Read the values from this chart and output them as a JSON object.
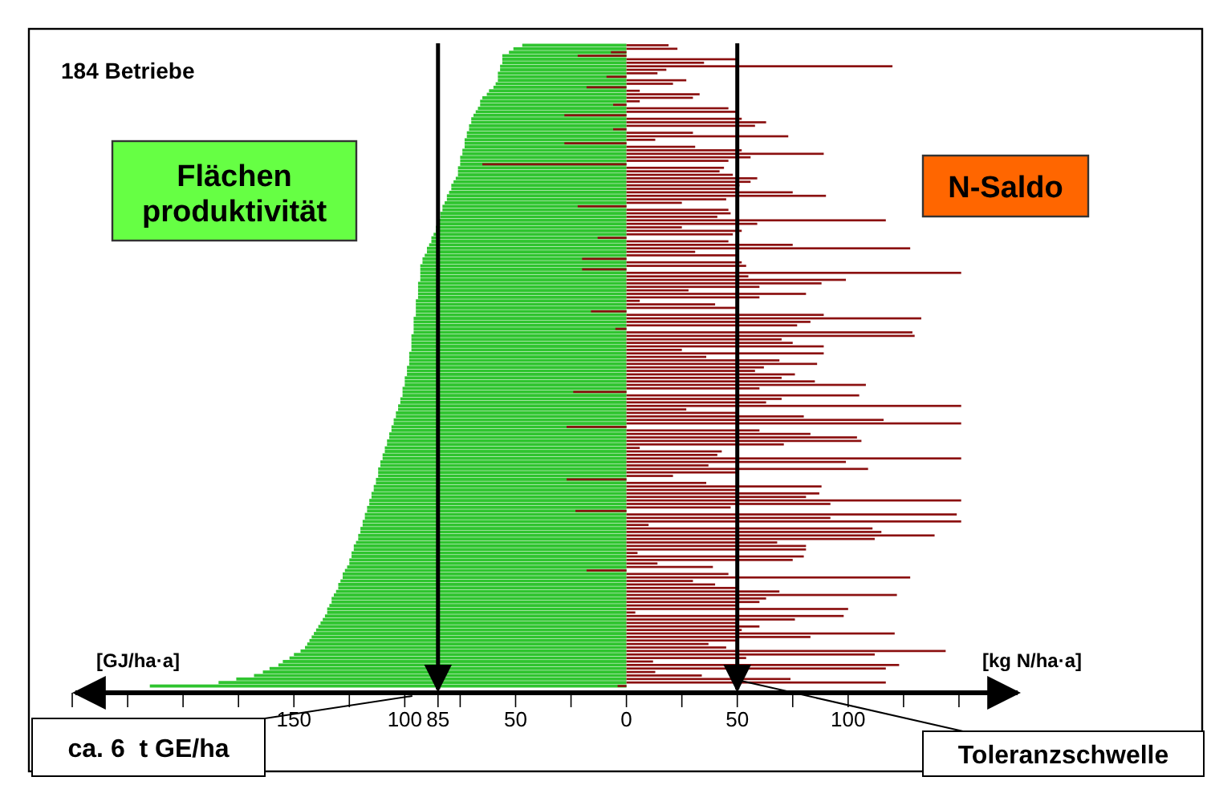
{
  "chart_data": {
    "type": "bar",
    "orientation": "horizontal",
    "title": "184 Betriebe",
    "categories": [
      null,
      null,
      null,
      null,
      null,
      null,
      null,
      null,
      null,
      null,
      null,
      null,
      null,
      null,
      null,
      null,
      null,
      null,
      null,
      null,
      null,
      null,
      null,
      null,
      null,
      null,
      null,
      null,
      null,
      null,
      null,
      null,
      null,
      null,
      null,
      null,
      null,
      null,
      null,
      null,
      null,
      null,
      null,
      null,
      null,
      null,
      null,
      null,
      null,
      null,
      null,
      null,
      null,
      null,
      null,
      null,
      null,
      null,
      null,
      null,
      null,
      null,
      null,
      null,
      null,
      null,
      null,
      null,
      null,
      null,
      null,
      null,
      null,
      null,
      null,
      null,
      null,
      null,
      null,
      null,
      null,
      null,
      null,
      null,
      null,
      null,
      null,
      null,
      null,
      null,
      null,
      null,
      null,
      null,
      null,
      null,
      null,
      null,
      null,
      null,
      null,
      null,
      null,
      null,
      null,
      null,
      null,
      null,
      null,
      null,
      null,
      null,
      null,
      null,
      null,
      null,
      null,
      null,
      null,
      null,
      null,
      null,
      null,
      null,
      null,
      null,
      null,
      null,
      null,
      null,
      null,
      null,
      null,
      null,
      null,
      null,
      null,
      null,
      null,
      null,
      null,
      null,
      null,
      null,
      null,
      null,
      null,
      null,
      null,
      null,
      null,
      null,
      null,
      null,
      null,
      null,
      null,
      null,
      null,
      null,
      null,
      null,
      null,
      null,
      null,
      null,
      null,
      null,
      null,
      null,
      null,
      null,
      null,
      null,
      null,
      null,
      null,
      null,
      null,
      null,
      null,
      null,
      null,
      null
    ],
    "series": [
      {
        "name": "Flächen produktivität",
        "color": "#2fc42f",
        "values": [
          -47,
          -51,
          -53,
          -56,
          -56,
          -56,
          -57,
          -57,
          -58,
          -58,
          -58,
          -59,
          -60,
          -62,
          -63,
          -65,
          -66,
          -66,
          -67,
          -68,
          -69,
          -70,
          -70,
          -71,
          -71,
          -72,
          -72,
          -73,
          -73,
          -73,
          -74,
          -74,
          -75,
          -75,
          -75,
          -76,
          -76,
          -76,
          -77,
          -78,
          -79,
          -79,
          -80,
          -81,
          -81,
          -82,
          -83,
          -83,
          -84,
          -84,
          -85,
          -85,
          -86,
          -86,
          -87,
          -88,
          -88,
          -89,
          -90,
          -90,
          -91,
          -92,
          -92,
          -93,
          -93,
          -93,
          -93,
          -93,
          -94,
          -94,
          -94,
          -94,
          -94,
          -95,
          -95,
          -95,
          -95,
          -95,
          -96,
          -96,
          -96,
          -96,
          -96,
          -97,
          -97,
          -97,
          -97,
          -97,
          -98,
          -98,
          -98,
          -98,
          -99,
          -99,
          -99,
          -100,
          -100,
          -100,
          -101,
          -101,
          -101,
          -102,
          -102,
          -103,
          -103,
          -104,
          -104,
          -105,
          -105,
          -106,
          -106,
          -107,
          -107,
          -108,
          -108,
          -109,
          -109,
          -110,
          -110,
          -111,
          -111,
          -112,
          -112,
          -112,
          -113,
          -113,
          -114,
          -114,
          -115,
          -115,
          -116,
          -116,
          -117,
          -117,
          -118,
          -118,
          -119,
          -119,
          -120,
          -120,
          -121,
          -121,
          -122,
          -123,
          -123,
          -124,
          -124,
          -125,
          -125,
          -126,
          -127,
          -128,
          -128,
          -129,
          -130,
          -130,
          -131,
          -132,
          -133,
          -133,
          -134,
          -135,
          -135,
          -136,
          -137,
          -138,
          -139,
          -140,
          -141,
          -142,
          -143,
          -144,
          -145,
          -147,
          -150,
          -152,
          -155,
          -157,
          -161,
          -164,
          -168,
          -176,
          -184,
          -215
        ]
      },
      {
        "name": "N-Saldo",
        "color": "#8b1010",
        "values": [
          19,
          23,
          -7,
          -22,
          50,
          35,
          120,
          18,
          14,
          -9,
          27,
          21,
          -18,
          6,
          33,
          30,
          6,
          -6,
          46,
          50,
          -28,
          52,
          63,
          58,
          -6,
          30,
          73,
          13,
          -28,
          31,
          52,
          89,
          56,
          46,
          -65,
          44,
          42,
          48,
          59,
          56,
          51,
          50,
          75,
          90,
          45,
          25,
          -22,
          46,
          47,
          41,
          117,
          59,
          25,
          52,
          48,
          -13,
          46,
          75,
          128,
          31,
          50,
          -20,
          52,
          54,
          -20,
          151,
          55,
          99,
          88,
          60,
          28,
          81,
          60,
          6,
          40,
          50,
          -16,
          89,
          133,
          83,
          77,
          -5,
          129,
          130,
          70,
          75,
          89,
          25,
          89,
          36,
          69,
          86,
          62,
          58,
          76,
          70,
          85,
          108,
          60,
          -24,
          105,
          70,
          63,
          151,
          27,
          50,
          80,
          116,
          151,
          -27,
          60,
          83,
          104,
          106,
          71,
          6,
          43,
          41,
          151,
          99,
          37,
          109,
          50,
          21,
          -27,
          36,
          88,
          50,
          87,
          81,
          151,
          92,
          47,
          -23,
          149,
          92,
          151,
          10,
          111,
          115,
          139,
          112,
          68,
          81,
          81,
          5,
          80,
          75,
          14,
          39,
          -18,
          46,
          128,
          30,
          40,
          50,
          69,
          122,
          63,
          60,
          50,
          100,
          4,
          98,
          76,
          50,
          60,
          52,
          121,
          83,
          50,
          37,
          45,
          144,
          112,
          54,
          12,
          123,
          117,
          13,
          34,
          74,
          117,
          -4
        ]
      }
    ],
    "xlim": [
      -250,
      175
    ],
    "xticks": [
      {
        "value": -250,
        "label": null
      },
      {
        "value": -225,
        "label": null
      },
      {
        "value": -200,
        "label": null
      },
      {
        "value": -175,
        "label": null
      },
      {
        "value": -150,
        "label": "150"
      },
      {
        "value": -125,
        "label": null
      },
      {
        "value": -100,
        "label": "100"
      },
      {
        "value": -85,
        "label": "85"
      },
      {
        "value": -75,
        "label": null
      },
      {
        "value": -50,
        "label": "50"
      },
      {
        "value": -25,
        "label": null
      },
      0,
      {
        "value": 25,
        "label": null
      },
      50,
      {
        "value": 75,
        "label": null
      },
      100,
      {
        "value": 125,
        "label": null
      },
      {
        "value": 150,
        "label": null
      }
    ],
    "ref_lines": [
      {
        "axis": "x",
        "value": -85
      },
      {
        "axis": "x",
        "value": 50,
        "label": "Toleranzschwelle"
      }
    ],
    "annotations": [
      "[GJ/ha·a]",
      "[kg N/ha·a]",
      "ca. 6  t GE/ha"
    ]
  }
}
